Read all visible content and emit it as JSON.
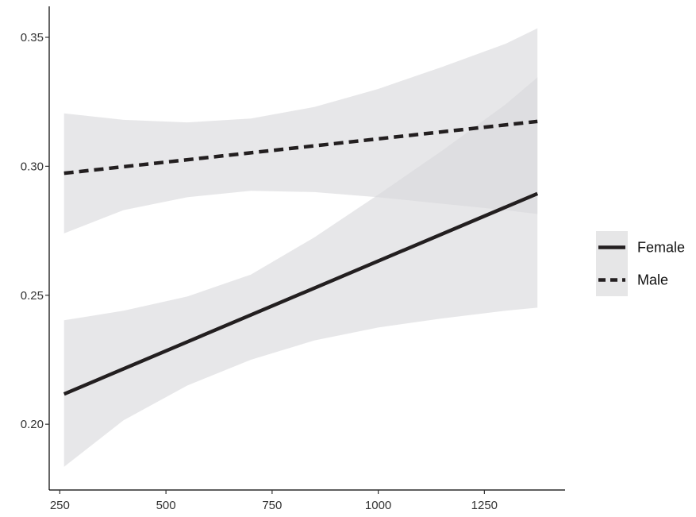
{
  "chart_data": {
    "type": "line",
    "title": "",
    "xlabel": "",
    "ylabel": "",
    "xlim": [
      225,
      1440
    ],
    "ylim": [
      0.1745,
      0.362
    ],
    "x_ticks": [
      250,
      500,
      750,
      1000,
      1250
    ],
    "x_tick_labels": [
      "250",
      "500",
      "750",
      "1000",
      "1250"
    ],
    "y_ticks": [
      0.2,
      0.25,
      0.3,
      0.35
    ],
    "y_tick_labels": [
      "0.20",
      "0.25",
      "0.30",
      "0.35"
    ],
    "grid": false,
    "legend_position": "right",
    "series": [
      {
        "name": "Female",
        "line_style": "solid",
        "color": "#231f20",
        "band_color": "#d9d9db",
        "x": [
          260,
          1375
        ],
        "y": [
          0.2117,
          0.2894
        ],
        "ci_x": [
          260,
          400,
          550,
          700,
          850,
          1000,
          1150,
          1300,
          1375
        ],
        "ci_lower": [
          0.1835,
          0.2015,
          0.215,
          0.225,
          0.2325,
          0.2375,
          0.241,
          0.244,
          0.2452
        ],
        "ci_upper": [
          0.2403,
          0.244,
          0.2495,
          0.258,
          0.2725,
          0.289,
          0.306,
          0.324,
          0.3345
        ]
      },
      {
        "name": "Male",
        "line_style": "dashed",
        "color": "#231f20",
        "band_color": "#d9d9db",
        "x": [
          260,
          1375
        ],
        "y": [
          0.2973,
          0.3174
        ],
        "ci_x": [
          260,
          400,
          550,
          700,
          850,
          1000,
          1150,
          1300,
          1375
        ],
        "ci_lower": [
          0.274,
          0.283,
          0.288,
          0.2905,
          0.29,
          0.288,
          0.2855,
          0.283,
          0.2815
        ],
        "ci_upper": [
          0.3205,
          0.318,
          0.317,
          0.3185,
          0.323,
          0.33,
          0.3385,
          0.3475,
          0.3535
        ]
      }
    ]
  }
}
